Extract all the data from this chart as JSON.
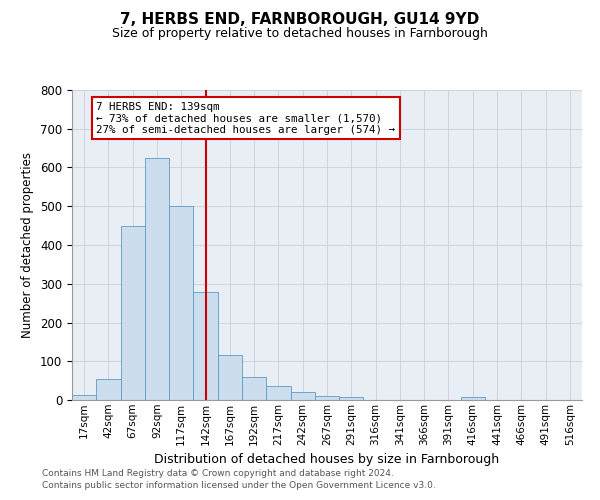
{
  "title": "7, HERBS END, FARNBOROUGH, GU14 9YD",
  "subtitle": "Size of property relative to detached houses in Farnborough",
  "xlabel": "Distribution of detached houses by size in Farnborough",
  "ylabel": "Number of detached properties",
  "bar_categories": [
    "17sqm",
    "42sqm",
    "67sqm",
    "92sqm",
    "117sqm",
    "142sqm",
    "167sqm",
    "192sqm",
    "217sqm",
    "242sqm",
    "267sqm",
    "291sqm",
    "316sqm",
    "341sqm",
    "366sqm",
    "391sqm",
    "416sqm",
    "441sqm",
    "466sqm",
    "491sqm",
    "516sqm"
  ],
  "bar_values": [
    12,
    53,
    450,
    625,
    500,
    280,
    115,
    60,
    35,
    20,
    10,
    8,
    0,
    0,
    0,
    0,
    8,
    0,
    0,
    0,
    0
  ],
  "bar_color": "#ccdded",
  "bar_edge_color": "#5b9bca",
  "vline_color": "#cc0000",
  "vline_index": 5,
  "annotation_label": "7 HERBS END: 139sqm",
  "annotation_line1": "← 73% of detached houses are smaller (1,570)",
  "annotation_line2": "27% of semi-detached houses are larger (574) →",
  "annotation_box_facecolor": "#ffffff",
  "annotation_box_edgecolor": "#cc0000",
  "ylim": [
    0,
    800
  ],
  "yticks": [
    0,
    100,
    200,
    300,
    400,
    500,
    600,
    700,
    800
  ],
  "grid_color": "#c8d0d8",
  "bg_color": "#e8eef4",
  "title_fontsize": 11,
  "subtitle_fontsize": 9,
  "footer_line1": "Contains HM Land Registry data © Crown copyright and database right 2024.",
  "footer_line2": "Contains public sector information licensed under the Open Government Licence v3.0."
}
